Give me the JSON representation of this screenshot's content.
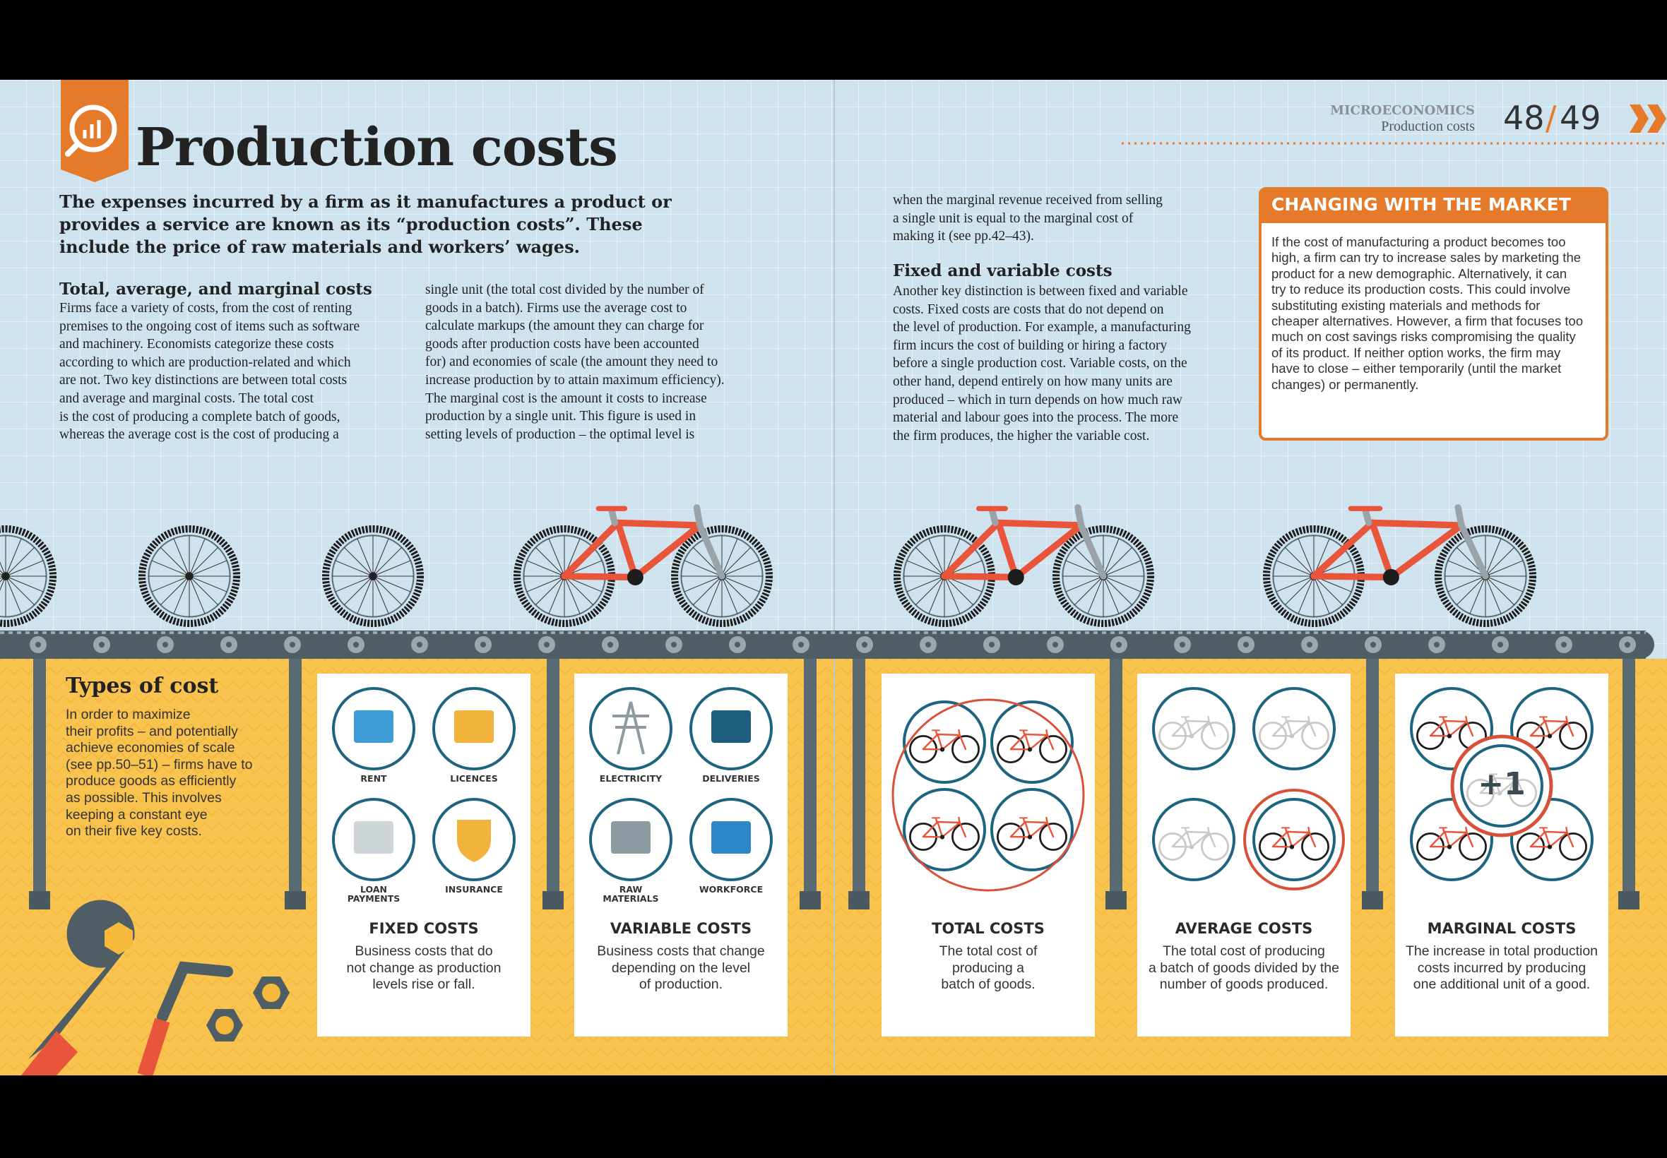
{
  "header": {
    "section": "MICROECONOMICS",
    "topic": "Production costs",
    "page_left": "48",
    "separator": "/",
    "page_right": "49"
  },
  "title": "Production costs",
  "intro": [
    "The expenses incurred by a firm as it manufactures a product or",
    "provides a service are known as its “production costs”. These",
    "include the price of raw materials and workers’ wages."
  ],
  "body": {
    "heading1": "Total, average, and marginal costs",
    "column1": [
      "Firms face a variety of costs, from the cost of renting",
      "premises to the ongoing cost of items such as software",
      "and machinery. Economists categorize these costs",
      "according to which are production-related and which",
      "are not. Two key distinctions are between total costs",
      "and average and marginal costs. The total cost",
      "is the cost of producing a complete batch of goods,",
      "whereas the average cost is the cost of producing a"
    ],
    "column2": [
      "single unit (the total cost divided by the number of",
      "goods in a batch). Firms use the average cost to",
      "calculate markups (the amount they can charge for",
      "goods after production costs have been accounted",
      "for) and economies of scale (the amount they need to",
      "increase production by to attain maximum efficiency).",
      "The marginal cost is the amount it costs to increase",
      "production by a single unit. This figure is used in",
      "setting levels of production – the optimal level is"
    ],
    "column3": [
      "when the marginal revenue received from selling",
      "a single unit is equal to the marginal cost of",
      "making it (see pp.42–43)."
    ],
    "heading2": "Fixed and variable costs",
    "column4": [
      "Another key distinction is between fixed and variable",
      "costs. Fixed costs are costs that do not depend on",
      "the level of production. For example, a manufacturing",
      "firm incurs the cost of building or hiring a factory",
      "before a single production cost. Variable costs, on the",
      "other hand, depend entirely on how many units are",
      "produced – which in turn depends on how much raw",
      "material and labour goes into the process. The more",
      "the firm produces, the higher the variable cost."
    ]
  },
  "sidebar": {
    "title": "CHANGING WITH THE MARKET",
    "lines": [
      "If the cost of manufacturing a product becomes too",
      "high, a firm can try to increase sales by marketing the",
      "product for a new demographic. Alternatively, it can",
      "try to reduce its production costs. This could involve",
      "substituting existing materials and methods for",
      "cheaper alternatives. However, a firm that focuses too",
      "much on cost savings risks compromising the quality",
      "of its product. If neither option works, the firm may",
      "have to close – either temporarily (until the market",
      "changes) or permanently."
    ]
  },
  "types_of_cost": {
    "title": "Types of cost",
    "lines": [
      "In order to maximize",
      "their profits – and potentially",
      "achieve economies of scale",
      "(see pp.50–51) – firms have to",
      "produce goods as efficiently",
      "as possible. This involves",
      "keeping a constant eye",
      "on their five key costs."
    ]
  },
  "cards": [
    {
      "icons": [
        "RENT",
        "LICENCES",
        "LOAN PAYMENTS",
        "INSURANCE"
      ],
      "title": "FIXED COSTS",
      "lines": [
        "Business costs that do",
        "not change as production",
        "levels rise or fall."
      ]
    },
    {
      "icons": [
        "ELECTRICITY",
        "DELIVERIES",
        "RAW MATERIALS",
        "WORKFORCE"
      ],
      "title": "VARIABLE COSTS",
      "lines": [
        "Business costs that change",
        "depending on the level",
        "of production."
      ]
    },
    {
      "title": "TOTAL COSTS",
      "lines": [
        "The total cost of",
        "producing a",
        "batch of goods."
      ]
    },
    {
      "title": "AVERAGE COSTS",
      "lines": [
        "The total cost of producing",
        "a batch of goods divided by the",
        "number of goods produced."
      ]
    },
    {
      "title": "MARGINAL COSTS",
      "badge": "+1",
      "lines": [
        "The increase in total production",
        "costs incurred by producing",
        "one additional unit of a good."
      ]
    }
  ]
}
